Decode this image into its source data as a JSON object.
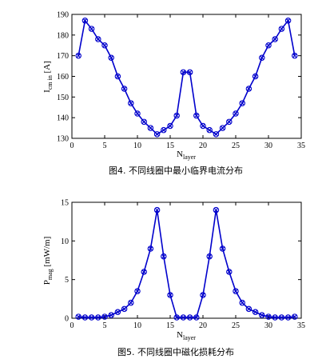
{
  "chart_data": [
    {
      "type": "line",
      "caption": "图4. 不同线圈中最小临界电流分布",
      "xlabel_main": "N",
      "xlabel_sub": "layer",
      "ylabel_main": "I",
      "ylabel_sub": "cm in",
      "ylabel_unit": " [A]",
      "xlim": [
        0,
        35
      ],
      "ylim": [
        130,
        190
      ],
      "xticks": [
        0,
        5,
        10,
        15,
        20,
        25,
        30,
        35
      ],
      "yticks": [
        130,
        140,
        150,
        160,
        170,
        180,
        190
      ],
      "grid": false,
      "x": [
        1,
        2,
        3,
        4,
        5,
        6,
        7,
        8,
        9,
        10,
        11,
        12,
        13,
        14,
        15,
        16,
        17,
        18,
        19,
        20,
        21,
        22,
        23,
        24,
        25,
        26,
        27,
        28,
        29,
        30,
        31,
        32,
        33,
        34
      ],
      "y": [
        170,
        187,
        183,
        178,
        175,
        169,
        160,
        154,
        147,
        142,
        138,
        135,
        132,
        134,
        136,
        141,
        162,
        162,
        141,
        136,
        134,
        132,
        135,
        138,
        142,
        147,
        154,
        160,
        169,
        175,
        178,
        183,
        187,
        170
      ]
    },
    {
      "type": "line",
      "caption": "图5. 不同线圈中磁化损耗分布",
      "xlabel_main": "N",
      "xlabel_sub": "layer",
      "ylabel_main": "P",
      "ylabel_sub": "mag",
      "ylabel_unit": " [mW/m]",
      "xlim": [
        0,
        35
      ],
      "ylim": [
        0,
        15
      ],
      "xticks": [
        0,
        5,
        10,
        15,
        20,
        25,
        30,
        35
      ],
      "yticks": [
        0,
        5,
        10,
        15
      ],
      "grid": false,
      "x": [
        1,
        2,
        3,
        4,
        5,
        6,
        7,
        8,
        9,
        10,
        11,
        12,
        13,
        14,
        15,
        16,
        17,
        18,
        19,
        20,
        21,
        22,
        23,
        24,
        25,
        26,
        27,
        28,
        29,
        30,
        31,
        32,
        33,
        34
      ],
      "y": [
        0.2,
        0.1,
        0.1,
        0.1,
        0.2,
        0.4,
        0.8,
        1.2,
        2.0,
        3.5,
        6.0,
        9.0,
        14.0,
        8.0,
        3.0,
        0.1,
        0.1,
        0.1,
        0.1,
        3.0,
        8.0,
        14.0,
        9.0,
        6.0,
        3.5,
        2.0,
        1.2,
        0.8,
        0.4,
        0.2,
        0.1,
        0.1,
        0.1,
        0.2
      ]
    }
  ]
}
